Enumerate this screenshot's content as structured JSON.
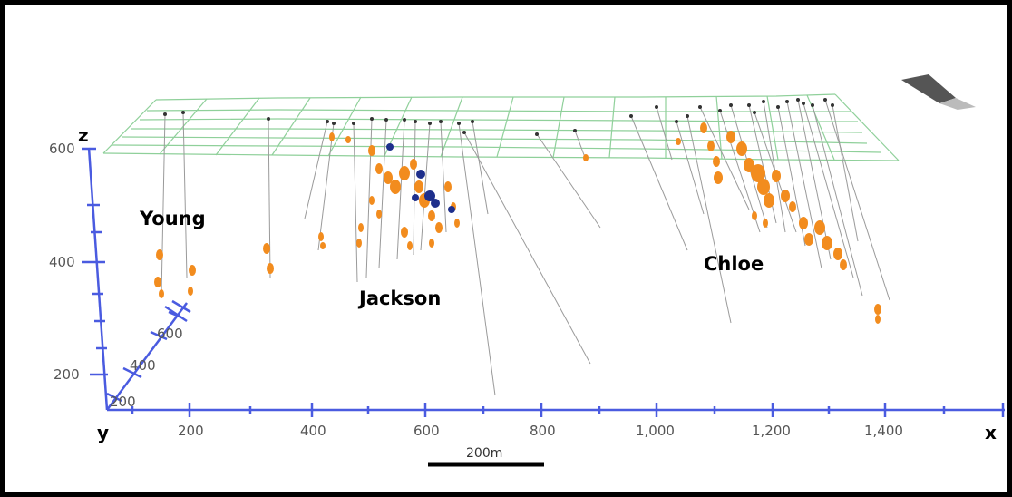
{
  "axes": {
    "x_letter": "x",
    "y_letter": "y",
    "z_letter": "z",
    "x_ticks": [
      "200",
      "400",
      "600",
      "800",
      "1,000",
      "1,200",
      "1,400"
    ],
    "z_ticks": [
      "200",
      "400",
      "600"
    ],
    "y_ticks": [
      "200",
      "400",
      "600"
    ],
    "color": "#4a5be0"
  },
  "deposits": [
    {
      "name": "Young"
    },
    {
      "name": "Jackson"
    },
    {
      "name": "Chloe"
    }
  ],
  "scale_bar": {
    "label": "200m"
  },
  "colors": {
    "surface_grid": "#8fd09a",
    "drill_trace": "#9a9a9a",
    "ore_hit": "#f28c1e",
    "high_grade_hit": "#1e2f8c",
    "collar": "#333333",
    "north_arrow": "#555555"
  },
  "icons": {
    "orientation": "north-arrow-icon"
  }
}
